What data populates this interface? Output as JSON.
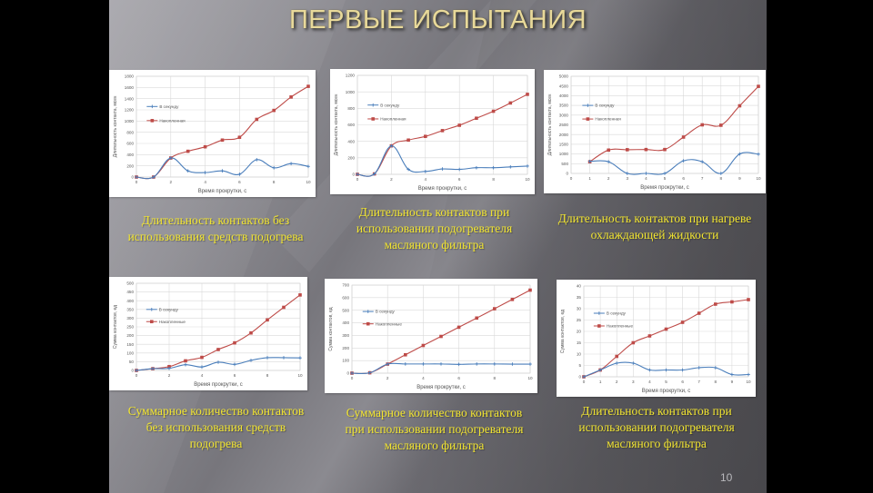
{
  "slide": {
    "title": "ПЕРВЫЕ ИСПЫТАНИЯ",
    "page_number": "10",
    "colors": {
      "series_per_second": "#4a7ebb",
      "series_cumulative": "#be4b48",
      "caption": "#f2e530",
      "title": "#e8d99a"
    }
  },
  "captions": [
    "Длительность контактов без использования средств подогрева",
    "Длительность контактов при использовании подогревателя масляного фильтра",
    "Длительность контактов при нагреве охлаждающей жидкости",
    "Суммарное количество контактов без использования средств подогрева",
    "Суммарное количество контактов при использовании подогревателя масляного фильтра",
    "Длительность контактов при использовании подогревателя масляного фильтра"
  ],
  "chart_data": [
    {
      "type": "line",
      "title": "",
      "xlabel": "Время прокрутки, с",
      "ylabel": "Длительность контакта, мсек",
      "xlim": [
        0,
        10
      ],
      "xticks": [
        0,
        2,
        4,
        6,
        8,
        10
      ],
      "ylim": [
        0,
        1800
      ],
      "ystep": 200,
      "grid": true,
      "legend_position": "upper-left-inside",
      "x": [
        0,
        1,
        2,
        3,
        4,
        5,
        6,
        7,
        8,
        9,
        10
      ],
      "series": [
        {
          "name": "В секунду",
          "values": [
            0,
            0,
            340,
            110,
            80,
            110,
            50,
            310,
            165,
            240,
            190
          ]
        },
        {
          "name": "Накопленная",
          "values": [
            0,
            0,
            340,
            460,
            540,
            660,
            710,
            1030,
            1190,
            1430,
            1620
          ]
        }
      ]
    },
    {
      "type": "line",
      "title": "",
      "xlabel": "Время прокрутки, с",
      "ylabel": "Длительность контакта, мсек",
      "xlim": [
        0,
        10
      ],
      "xticks": [
        0,
        2,
        4,
        6,
        8,
        10
      ],
      "ylim": [
        0,
        1200
      ],
      "ystep": 200,
      "grid": true,
      "legend_position": "upper-left-inside",
      "x": [
        0,
        1,
        2,
        3,
        4,
        5,
        6,
        7,
        8,
        9,
        10
      ],
      "series": [
        {
          "name": "В секунду",
          "values": [
            0,
            5,
            345,
            60,
            35,
            65,
            60,
            80,
            80,
            90,
            100
          ]
        },
        {
          "name": "Накопленная",
          "values": [
            0,
            5,
            345,
            415,
            460,
            530,
            595,
            680,
            765,
            865,
            970
          ]
        }
      ]
    },
    {
      "type": "line",
      "title": "",
      "xlabel": "Время прокрутки, с",
      "ylabel": "Длительность контакта, мсек",
      "xlim": [
        0,
        10
      ],
      "xticks": [
        0,
        1,
        2,
        3,
        4,
        5,
        6,
        7,
        8,
        9,
        10
      ],
      "ylim": [
        0,
        5000
      ],
      "ystep": 500,
      "grid": true,
      "legend_position": "upper-left-inside",
      "x": [
        1,
        2,
        3,
        4,
        5,
        6,
        7,
        8,
        9,
        10
      ],
      "series": [
        {
          "name": "В секунду",
          "values": [
            620,
            600,
            0,
            0,
            0,
            650,
            600,
            0,
            1000,
            990
          ]
        },
        {
          "name": "Накопленная",
          "values": [
            600,
            1200,
            1220,
            1230,
            1230,
            1870,
            2500,
            2480,
            3480,
            4480
          ]
        }
      ]
    },
    {
      "type": "line",
      "title": "",
      "xlabel": "Время прокрутки, с",
      "ylabel": "Сумма контактов, ед",
      "xlim": [
        0,
        10
      ],
      "xticks": [
        0,
        2,
        4,
        6,
        8,
        10
      ],
      "ylim": [
        0,
        500
      ],
      "ystep": 50,
      "grid": true,
      "legend_position": "upper-left-inside",
      "x": [
        0,
        1,
        2,
        3,
        4,
        5,
        6,
        7,
        8,
        9,
        10
      ],
      "series": [
        {
          "name": "В секунду",
          "values": [
            0,
            10,
            12,
            33,
            20,
            47,
            35,
            58,
            73,
            73,
            72
          ]
        },
        {
          "name": "Накопленные",
          "values": [
            0,
            10,
            22,
            55,
            75,
            120,
            158,
            215,
            290,
            362,
            433
          ]
        }
      ]
    },
    {
      "type": "line",
      "title": "",
      "xlabel": "Время прокрутки, с",
      "ylabel": "Сумма контактов, ед",
      "xlim": [
        0,
        10
      ],
      "xticks": [
        0,
        2,
        4,
        6,
        8,
        10
      ],
      "ylim": [
        0,
        700
      ],
      "ystep": 100,
      "grid": true,
      "legend_position": "upper-left-inside",
      "x": [
        0,
        1,
        2,
        3,
        4,
        5,
        6,
        7,
        8,
        9,
        10
      ],
      "series": [
        {
          "name": "В секунду",
          "values": [
            0,
            3,
            72,
            73,
            73,
            73,
            70,
            73,
            73,
            72,
            72
          ]
        },
        {
          "name": "Накопленные",
          "values": [
            0,
            3,
            72,
            146,
            220,
            292,
            365,
            438,
            512,
            586,
            660
          ]
        }
      ]
    },
    {
      "type": "line",
      "title": "",
      "xlabel": "Время прокрутки, с",
      "ylabel": "Сумма контактов, ед",
      "xlim": [
        0,
        10
      ],
      "xticks": [
        0,
        1,
        2,
        3,
        4,
        5,
        6,
        7,
        8,
        9,
        10
      ],
      "ylim": [
        0,
        40
      ],
      "ystep": 5,
      "grid": true,
      "legend_position": "upper-left-inside",
      "x": [
        0,
        1,
        2,
        3,
        4,
        5,
        6,
        7,
        8,
        9,
        10
      ],
      "series": [
        {
          "name": "В секунду",
          "values": [
            0,
            3,
            6,
            6,
            3,
            3,
            3,
            4,
            4,
            1,
            1
          ]
        },
        {
          "name": "Накопленные",
          "values": [
            0,
            3,
            9,
            15,
            18,
            21,
            24,
            28,
            32,
            33,
            34
          ]
        }
      ]
    }
  ]
}
